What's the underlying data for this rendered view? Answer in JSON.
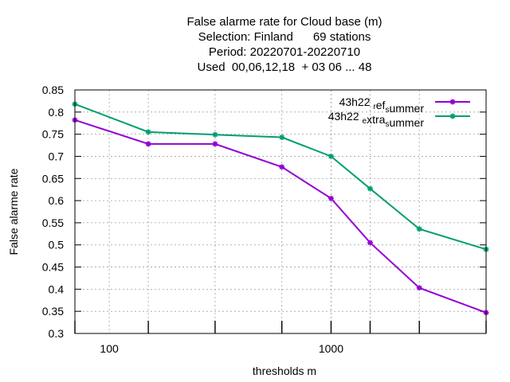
{
  "chart_data": {
    "type": "line",
    "title_lines": [
      "False alarme rate  for Cloud base (m)",
      "Selection: Finland      69 stations",
      "Period: 20220701-20220710",
      "Used  00,06,12,18  + 03 06 ... 48"
    ],
    "xlabel": "thresholds m",
    "ylabel": "False alarme rate",
    "x_scale": "log",
    "xlim": [
      70,
      5000
    ],
    "ylim": [
      0.3,
      0.85
    ],
    "x_tick_labels": [
      {
        "value": 100,
        "label": "100"
      },
      {
        "value": 1000,
        "label": "1000"
      }
    ],
    "y_tick_labels": [
      "0.3",
      "0.35",
      "0.4",
      "0.45",
      "0.5",
      "0.55",
      "0.6",
      "0.65",
      "0.7",
      "0.75",
      "0.8",
      "0.85"
    ],
    "y_ticks": [
      0.3,
      0.35,
      0.4,
      0.45,
      0.5,
      0.55,
      0.6,
      0.65,
      0.7,
      0.75,
      0.8,
      0.85
    ],
    "grid": true,
    "legend_position": "top-right",
    "x": [
      70,
      150,
      300,
      600,
      1000,
      1500,
      2500,
      5000
    ],
    "series": [
      {
        "legend_parts": [
          [
            "43h22 ",
            ""
          ],
          [
            "r",
            "sub"
          ],
          [
            "ef",
            ""
          ],
          [
            "s",
            "sub"
          ],
          [
            "ummer",
            ""
          ]
        ],
        "color": "#9400d3",
        "values": [
          0.782,
          0.728,
          0.728,
          0.676,
          0.605,
          0.505,
          0.403,
          0.347
        ]
      },
      {
        "legend_parts": [
          [
            "43h22 ",
            ""
          ],
          [
            "e",
            "sub"
          ],
          [
            "xtra",
            ""
          ],
          [
            "s",
            "sub"
          ],
          [
            "ummer",
            ""
          ]
        ],
        "color": "#009e73",
        "values": [
          0.818,
          0.755,
          0.749,
          0.743,
          0.7,
          0.627,
          0.536,
          0.49
        ]
      }
    ]
  }
}
